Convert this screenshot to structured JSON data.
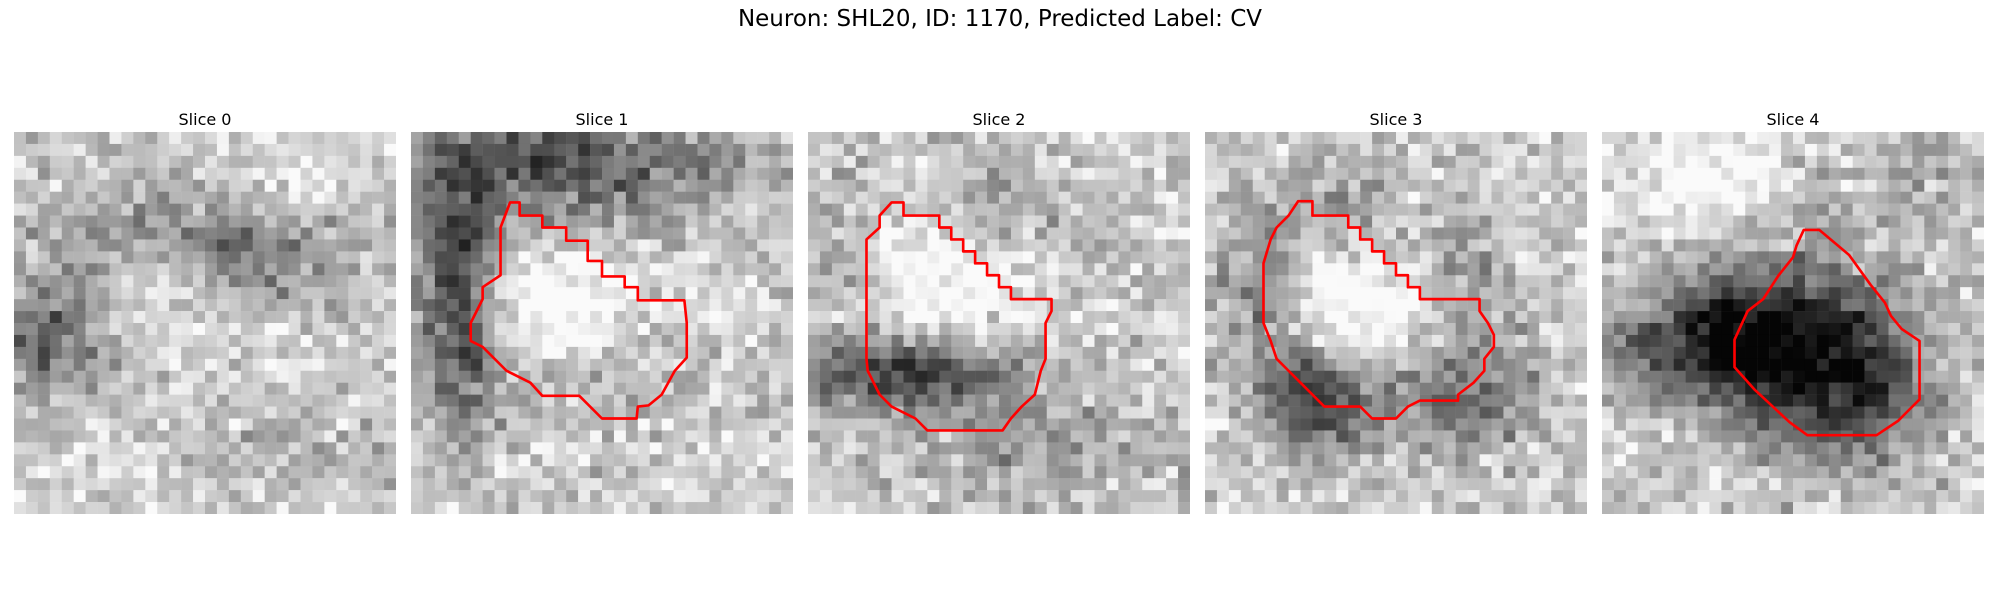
{
  "figure": {
    "title": "Neuron: SHL20, ID: 1170, Predicted Label: CV",
    "colormap": "gray",
    "outline_color": "#ff0000",
    "grid_size": 32
  },
  "slices": [
    {
      "title": "Slice 0",
      "has_outline": false
    },
    {
      "title": "Slice 1",
      "has_outline": true
    },
    {
      "title": "Slice 2",
      "has_outline": true
    },
    {
      "title": "Slice 3",
      "has_outline": true
    },
    {
      "title": "Slice 4",
      "has_outline": true
    }
  ]
}
